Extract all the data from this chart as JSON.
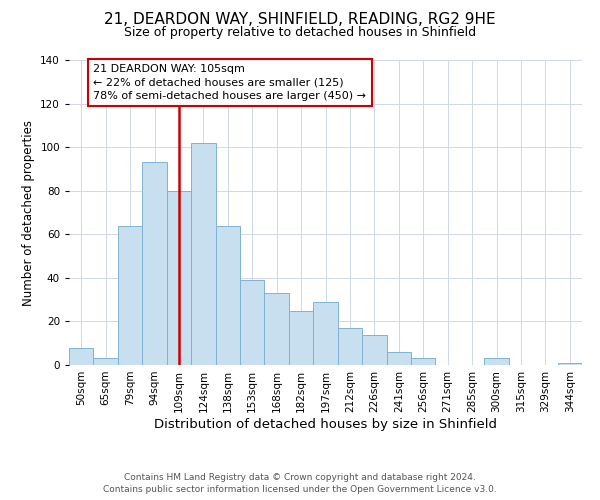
{
  "title": "21, DEARDON WAY, SHINFIELD, READING, RG2 9HE",
  "subtitle": "Size of property relative to detached houses in Shinfield",
  "xlabel": "Distribution of detached houses by size in Shinfield",
  "ylabel": "Number of detached properties",
  "bar_labels": [
    "50sqm",
    "65sqm",
    "79sqm",
    "94sqm",
    "109sqm",
    "124sqm",
    "138sqm",
    "153sqm",
    "168sqm",
    "182sqm",
    "197sqm",
    "212sqm",
    "226sqm",
    "241sqm",
    "256sqm",
    "271sqm",
    "285sqm",
    "300sqm",
    "315sqm",
    "329sqm",
    "344sqm"
  ],
  "bar_values": [
    8,
    3,
    64,
    93,
    80,
    102,
    64,
    39,
    33,
    25,
    29,
    17,
    14,
    6,
    3,
    0,
    0,
    3,
    0,
    0,
    1
  ],
  "bar_color": "#c8dff0",
  "bar_edgecolor": "#7fb3d3",
  "vline_index": 4,
  "vline_color": "#cc0000",
  "annotation_line1": "21 DEARDON WAY: 105sqm",
  "annotation_line2": "← 22% of detached houses are smaller (125)",
  "annotation_line3": "78% of semi-detached houses are larger (450) →",
  "annotation_box_edgecolor": "#cc0000",
  "annotation_box_facecolor": "white",
  "ylim": [
    0,
    140
  ],
  "yticks": [
    0,
    20,
    40,
    60,
    80,
    100,
    120,
    140
  ],
  "footer_line1": "Contains HM Land Registry data © Crown copyright and database right 2024.",
  "footer_line2": "Contains public sector information licensed under the Open Government Licence v3.0.",
  "title_fontsize": 11,
  "subtitle_fontsize": 9,
  "xlabel_fontsize": 9.5,
  "ylabel_fontsize": 8.5,
  "tick_fontsize": 7.5,
  "footer_fontsize": 6.5,
  "annotation_fontsize": 8,
  "background_color": "#ffffff",
  "grid_color": "#d0d8e8"
}
